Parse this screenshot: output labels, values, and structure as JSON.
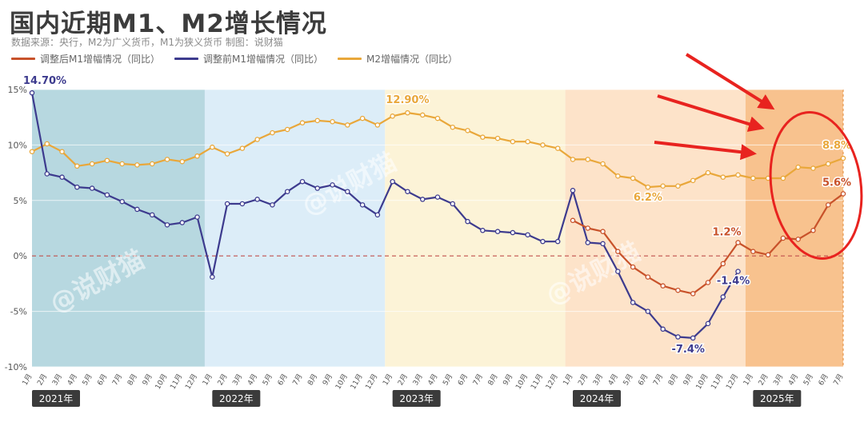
{
  "header": {
    "title": "国内近期M1、M2增长情况",
    "subtitle": "数据来源：央行，M2为广义货币，M1为狭义货币    制图：说财猫"
  },
  "legend": [
    {
      "label": "调整后M1增幅情况（同比）",
      "color": "#c8522a"
    },
    {
      "label": "调整前M1增幅情况（同比）",
      "color": "#3d3b8e"
    },
    {
      "label": "M2增幅情况（同比）",
      "color": "#e9a73a"
    }
  ],
  "watermark": "@说财猫",
  "colors": {
    "adjusted_m1": "#c8522a",
    "pre_m1": "#3d3b8e",
    "m2": "#e9a73a",
    "band_2021": "#b7d8e0",
    "band_2022": "#dcedf8",
    "band_2023": "#fcf3d7",
    "band_2024": "#fde3c9",
    "band_2025": "#f7b77a",
    "highlight": "#e8231f"
  },
  "chart_data": {
    "type": "line",
    "ylim": [
      -10,
      15
    ],
    "yticks": [
      "15%",
      "10%",
      "5%",
      "0%",
      "-5%",
      "-10%"
    ],
    "ytick_values": [
      15,
      10,
      5,
      0,
      -5,
      -10
    ],
    "x": [
      "1月",
      "2月",
      "3月",
      "4月",
      "5月",
      "6月",
      "7月",
      "8月",
      "9月",
      "10月",
      "11月",
      "12月",
      "1月",
      "2月",
      "3月",
      "4月",
      "5月",
      "6月",
      "7月",
      "8月",
      "9月",
      "10月",
      "11月",
      "12月",
      "1月",
      "2月",
      "3月",
      "4月",
      "5月",
      "6月",
      "7月",
      "8月",
      "9月",
      "10月",
      "11月",
      "12月",
      "1月",
      "2月",
      "3月",
      "4月",
      "5月",
      "6月",
      "7月",
      "8月",
      "9月",
      "10月",
      "11月",
      "12月",
      "1月",
      "2月",
      "3月",
      "4月",
      "5月",
      "6月",
      "7月"
    ],
    "years": [
      "2021年",
      "2022年",
      "2023年",
      "2024年",
      "2025年"
    ],
    "series": [
      {
        "name": "调整前M1增幅情况（同比）",
        "values": [
          14.7,
          7.4,
          7.1,
          6.2,
          6.1,
          5.5,
          4.9,
          4.2,
          3.7,
          2.8,
          3.0,
          3.5,
          -1.9,
          4.7,
          4.7,
          5.1,
          4.6,
          5.8,
          6.7,
          6.1,
          6.4,
          5.8,
          4.6,
          3.7,
          6.7,
          5.8,
          5.1,
          5.3,
          4.7,
          3.1,
          2.3,
          2.2,
          2.1,
          1.9,
          1.3,
          1.3,
          5.9,
          1.2,
          1.1,
          -1.4,
          -4.2,
          -5.0,
          -6.6,
          -7.3,
          -7.4,
          -6.1,
          -3.7,
          -1.4,
          null,
          null,
          null,
          null,
          null,
          null,
          null
        ]
      },
      {
        "name": "调整后M1增幅情况（同比）",
        "values": [
          null,
          null,
          null,
          null,
          null,
          null,
          null,
          null,
          null,
          null,
          null,
          null,
          null,
          null,
          null,
          null,
          null,
          null,
          null,
          null,
          null,
          null,
          null,
          null,
          null,
          null,
          null,
          null,
          null,
          null,
          null,
          null,
          null,
          null,
          null,
          null,
          3.2,
          2.5,
          2.2,
          0.4,
          -1.0,
          -1.9,
          -2.7,
          -3.1,
          -3.4,
          -2.4,
          -0.7,
          1.2,
          0.4,
          0.1,
          1.6,
          1.5,
          2.3,
          4.6,
          5.6
        ]
      },
      {
        "name": "M2增幅情况（同比）",
        "values": [
          9.4,
          10.1,
          9.4,
          8.1,
          8.3,
          8.6,
          8.3,
          8.2,
          8.3,
          8.7,
          8.5,
          9.0,
          9.8,
          9.2,
          9.7,
          10.5,
          11.1,
          11.4,
          12.0,
          12.2,
          12.1,
          11.8,
          12.4,
          11.8,
          12.6,
          12.9,
          12.7,
          12.4,
          11.6,
          11.3,
          10.7,
          10.6,
          10.3,
          10.3,
          10.0,
          9.7,
          8.7,
          8.7,
          8.3,
          7.2,
          7.0,
          6.2,
          6.3,
          6.3,
          6.8,
          7.5,
          7.1,
          7.3,
          7.0,
          7.0,
          7.0,
          8.0,
          7.9,
          8.3,
          8.8
        ]
      }
    ],
    "annotations": [
      {
        "label": "14.70%",
        "series": 0,
        "index": 0
      },
      {
        "label": "-7.4%",
        "series": 0,
        "index": 44
      },
      {
        "label": "-1.4%",
        "series": 0,
        "index": 47
      },
      {
        "label": "12.90%",
        "series": 2,
        "index": 25
      },
      {
        "label": "6.2%",
        "series": 2,
        "index": 41
      },
      {
        "label": "8.8%",
        "series": 2,
        "index": 54
      },
      {
        "label": "1.2%",
        "series": 1,
        "index": 47
      },
      {
        "label": "5.6%",
        "series": 1,
        "index": 54
      }
    ]
  }
}
